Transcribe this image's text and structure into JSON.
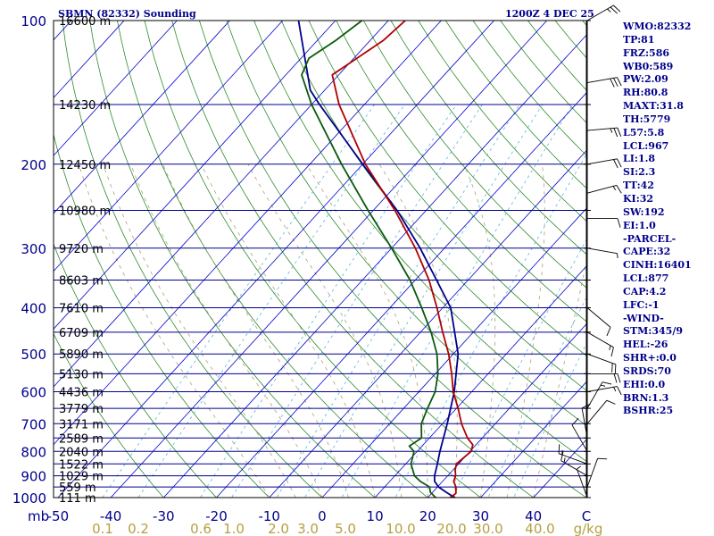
{
  "title_left": "SBMN (82332) Sounding",
  "title_right": "1200Z  4 DEC 25",
  "indices": [
    "WMO:82332",
    "TP:81",
    "FRZ:586",
    "WB0:589",
    "PW:2.09",
    "RH:80.8",
    "MAXT:31.8",
    "TH:5779",
    "L57:5.8",
    "LCL:967",
    "LI:1.8",
    "SI:2.3",
    "TT:42",
    "KI:32",
    "SW:192",
    "EI:1.0",
    "-PARCEL-",
    "CAPE:32",
    "CINH:16401",
    "LCL:877",
    "CAP:4.2",
    "LFC:-1",
    "-WIND-",
    "STM:345/9",
    "HEL:-26",
    "SHR+:0.0",
    "SRDS:70",
    "EHI:0.0",
    "BRN:1.3",
    "BSHR:25"
  ],
  "colors": {
    "frame": "#000000",
    "isobar": "#00008b",
    "isotherm": "#0000cd",
    "dry_adiabat": "#2e8b2e",
    "moist_adiabat": "#b0a070",
    "mixing_ratio": "#5ab4dc",
    "temperature": "#b00000",
    "dewpoint": "#0a5a0a",
    "parcel": "#00008b",
    "labels": "#00008b",
    "mixing_labels": "#b4a040",
    "wind": "#000000"
  },
  "chart_data": {
    "type": "skew-t",
    "xlabel_units": "C",
    "mixing_ratio_units": "g/kg",
    "pressure_axis_label": "mb",
    "pressure_ticks": [
      100,
      200,
      300,
      400,
      500,
      600,
      700,
      800,
      900,
      1000
    ],
    "temperature_ticks": [
      -50,
      -40,
      -30,
      -20,
      -10,
      0,
      10,
      20,
      30,
      40
    ],
    "temperature_tick_labels": [
      "-50",
      "-40",
      "-30",
      "-20",
      "-10",
      "0",
      "10",
      "20",
      "30",
      "40"
    ],
    "mixing_ratio_labels": [
      "0.1",
      "0.2",
      "0.6",
      "1.0",
      "2.0",
      "3.0",
      "5.0",
      "10.0",
      "20.0",
      "30.0",
      "40.0"
    ],
    "height_labels": [
      {
        "p": 100,
        "text": "16600 m"
      },
      {
        "p": 150,
        "text": "14230 m"
      },
      {
        "p": 200,
        "text": "12450 m"
      },
      {
        "p": 250,
        "text": "10980 m"
      },
      {
        "p": 300,
        "text": "9720 m"
      },
      {
        "p": 350,
        "text": "8603 m"
      },
      {
        "p": 400,
        "text": "7610 m"
      },
      {
        "p": 450,
        "text": "6709 m"
      },
      {
        "p": 500,
        "text": "5890 m"
      },
      {
        "p": 550,
        "text": "5130 m"
      },
      {
        "p": 600,
        "text": "4436 m"
      },
      {
        "p": 650,
        "text": "3779 m"
      },
      {
        "p": 700,
        "text": "3171 m"
      },
      {
        "p": 750,
        "text": "2589 m"
      },
      {
        "p": 800,
        "text": "2040 m"
      },
      {
        "p": 850,
        "text": "1522 m"
      },
      {
        "p": 900,
        "text": "1029 m"
      },
      {
        "p": 950,
        "text": "559 m"
      },
      {
        "p": 1000,
        "text": "111 m"
      }
    ],
    "temperature_profile": [
      [
        1009,
        25.0
      ],
      [
        1000,
        24.2
      ],
      [
        980,
        24.6
      ],
      [
        950,
        23.5
      ],
      [
        925,
        22.1
      ],
      [
        900,
        21.5
      ],
      [
        875,
        20.4
      ],
      [
        850,
        19.6
      ],
      [
        800,
        20.2
      ],
      [
        775,
        19.4
      ],
      [
        750,
        17.2
      ],
      [
        700,
        13.6
      ],
      [
        650,
        10.3
      ],
      [
        600,
        6.5
      ],
      [
        550,
        3.1
      ],
      [
        500,
        -0.9
      ],
      [
        450,
        -5.8
      ],
      [
        400,
        -11.1
      ],
      [
        350,
        -17.4
      ],
      [
        300,
        -25.5
      ],
      [
        250,
        -35.9
      ],
      [
        200,
        -49.5
      ],
      [
        150,
        -64.8
      ],
      [
        130,
        -71.2
      ],
      [
        110,
        -67.5
      ],
      [
        100,
        -66.8
      ]
    ],
    "dewpoint_profile": [
      [
        1009,
        23.0
      ],
      [
        1000,
        21.5
      ],
      [
        975,
        19.6
      ],
      [
        950,
        18.5
      ],
      [
        925,
        15.8
      ],
      [
        900,
        13.7
      ],
      [
        850,
        11.0
      ],
      [
        800,
        9.4
      ],
      [
        780,
        7.6
      ],
      [
        750,
        8.5
      ],
      [
        700,
        6.0
      ],
      [
        650,
        4.5
      ],
      [
        600,
        3.1
      ],
      [
        550,
        0.5
      ],
      [
        500,
        -3.1
      ],
      [
        450,
        -8.0
      ],
      [
        400,
        -14.0
      ],
      [
        350,
        -21.0
      ],
      [
        300,
        -30.0
      ],
      [
        250,
        -41.0
      ],
      [
        200,
        -54.0
      ],
      [
        150,
        -70.0
      ],
      [
        130,
        -77.0
      ],
      [
        120,
        -78.5
      ],
      [
        110,
        -76.5
      ],
      [
        100,
        -75.0
      ]
    ],
    "parcel_profile": [
      [
        1009,
        26.5
      ],
      [
        1000,
        25.1
      ],
      [
        975,
        22.6
      ],
      [
        950,
        20.2
      ],
      [
        925,
        18.5
      ],
      [
        900,
        17.5
      ],
      [
        850,
        16.0
      ],
      [
        800,
        14.3
      ],
      [
        700,
        10.9
      ],
      [
        600,
        6.7
      ],
      [
        500,
        0.9
      ],
      [
        400,
        -8.5
      ],
      [
        300,
        -24.6
      ],
      [
        250,
        -35.5
      ],
      [
        200,
        -50.0
      ],
      [
        150,
        -68.5
      ],
      [
        140,
        -72.7
      ],
      [
        100,
        -87.0
      ]
    ],
    "wind_barbs": [
      {
        "p": 100,
        "dir": 60,
        "spd": 25
      },
      {
        "p": 135,
        "dir": 80,
        "spd": 30
      },
      {
        "p": 170,
        "dir": 85,
        "spd": 25
      },
      {
        "p": 200,
        "dir": 80,
        "spd": 20
      },
      {
        "p": 230,
        "dir": 75,
        "spd": 15
      },
      {
        "p": 260,
        "dir": 90,
        "spd": 10
      },
      {
        "p": 300,
        "dir": 100,
        "spd": 5
      },
      {
        "p": 400,
        "dir": 130,
        "spd": 10
      },
      {
        "p": 450,
        "dir": 120,
        "spd": 15
      },
      {
        "p": 500,
        "dir": 110,
        "spd": 20
      },
      {
        "p": 550,
        "dir": 90,
        "spd": 20
      },
      {
        "p": 600,
        "dir": 80,
        "spd": 15
      },
      {
        "p": 650,
        "dir": 30,
        "spd": 15
      },
      {
        "p": 700,
        "dir": 40,
        "spd": 10
      },
      {
        "p": 750,
        "dir": 350,
        "spd": 10
      },
      {
        "p": 800,
        "dir": 330,
        "spd": 10
      },
      {
        "p": 850,
        "dir": 290,
        "spd": 15
      },
      {
        "p": 900,
        "dir": 300,
        "spd": 15
      },
      {
        "p": 950,
        "dir": 20,
        "spd": 10
      },
      {
        "p": 1000,
        "dir": 340,
        "spd": 5
      }
    ]
  }
}
